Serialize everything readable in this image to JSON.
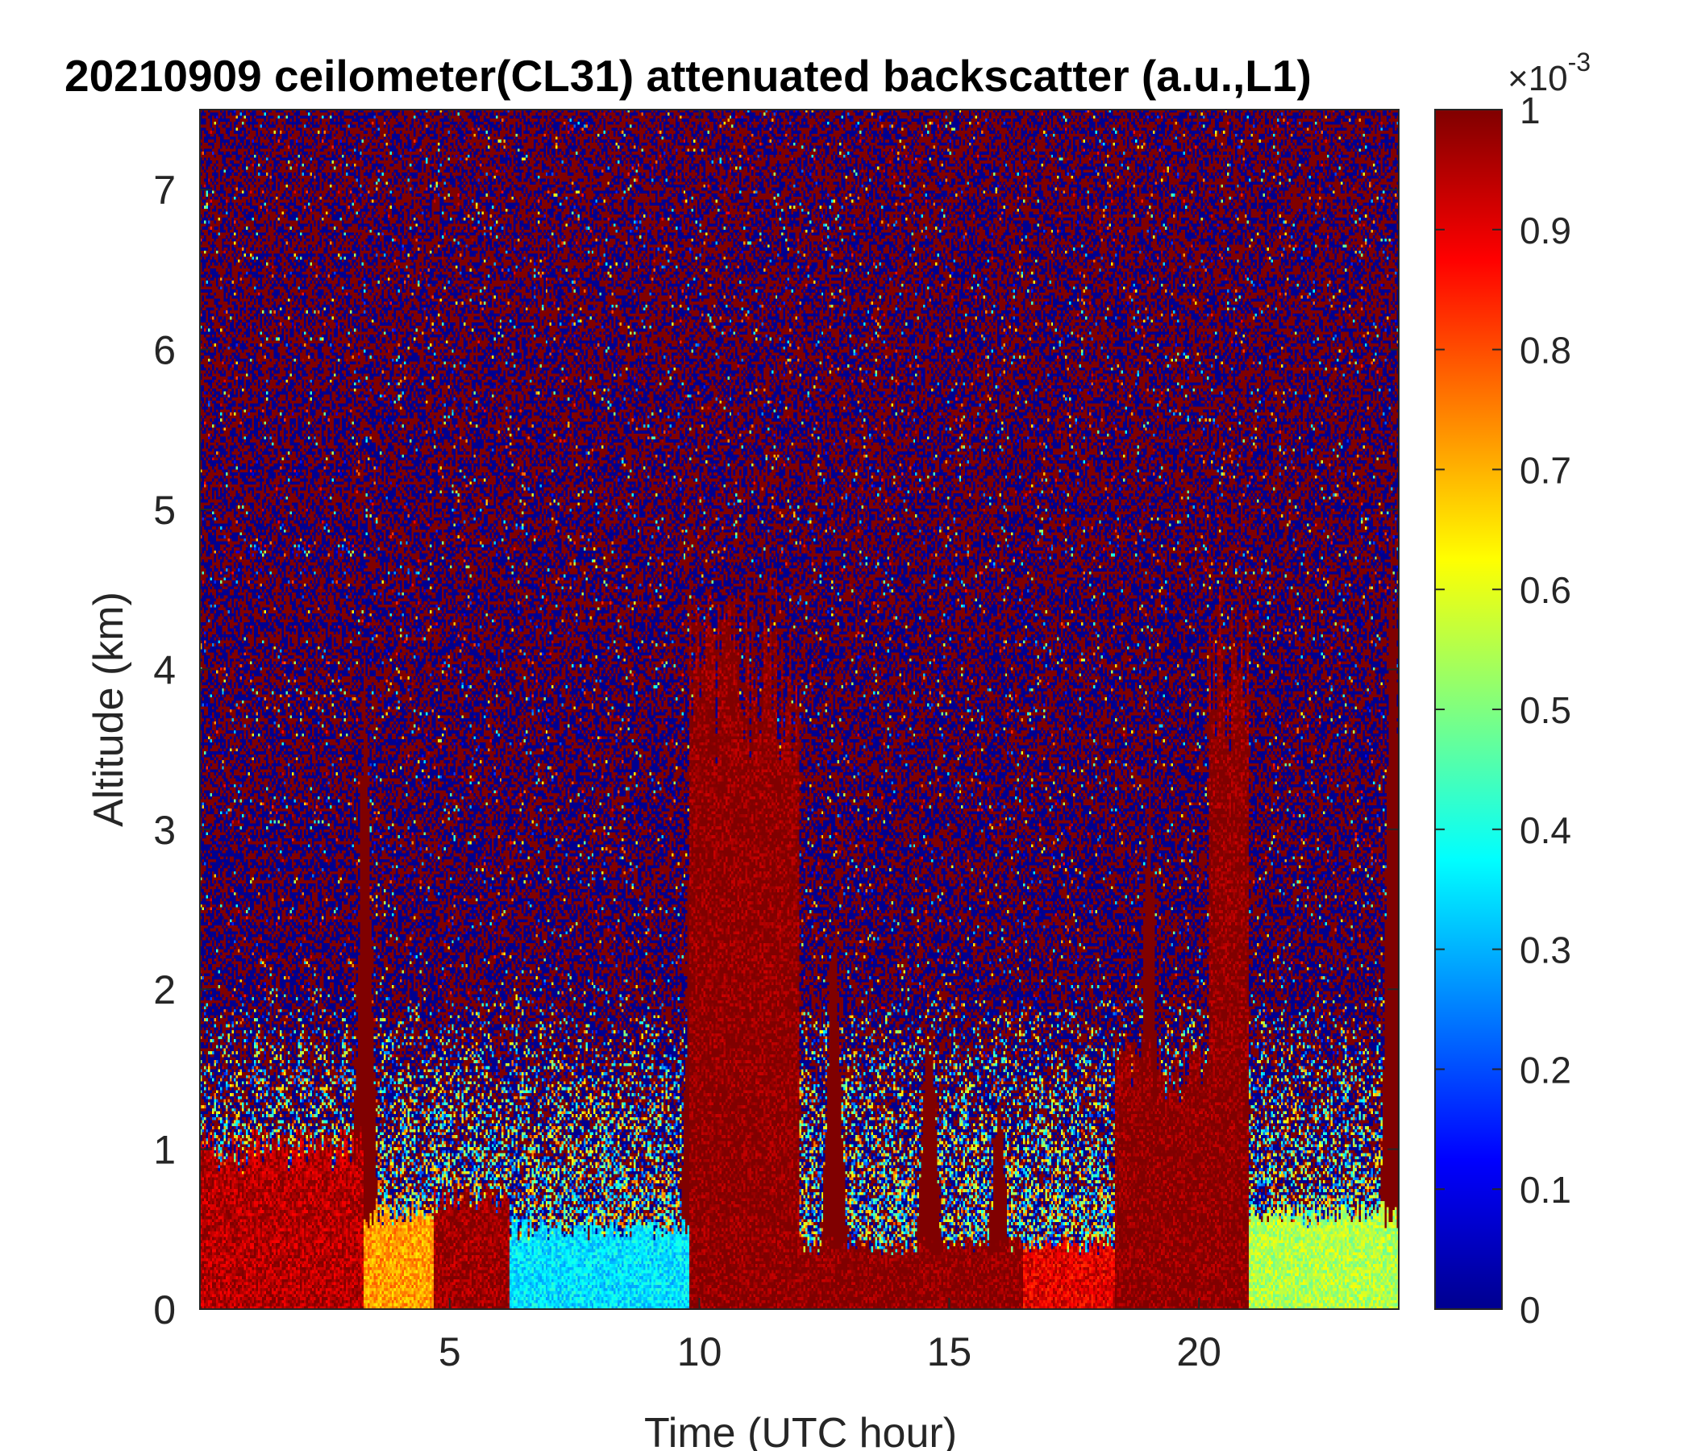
{
  "chart_data": {
    "type": "heatmap",
    "title": "20210909 ceilometer(CL31) attenuated backscatter (a.u.,L1)",
    "xlabel": "Time (UTC hour)",
    "ylabel": "Altitude (km)",
    "xlim": [
      0,
      24
    ],
    "ylim": [
      0,
      7.5
    ],
    "x_ticks": [
      5,
      10,
      15,
      20
    ],
    "y_ticks": [
      0,
      1,
      2,
      3,
      4,
      5,
      6,
      7
    ],
    "colorbar": {
      "colormap": "jet",
      "range": [
        0,
        1
      ],
      "ticks": [
        0,
        0.1,
        0.2,
        0.3,
        0.4,
        0.5,
        0.6,
        0.7,
        0.8,
        0.9,
        1
      ],
      "exponent_label": "×10",
      "exponent": "-3",
      "low_color": "#00008f",
      "high_color": "#800000"
    },
    "surface_layer_segments": [
      {
        "x_start": 0.0,
        "x_end": 3.3,
        "top_km": 1.0,
        "level": 0.95
      },
      {
        "x_start": 3.3,
        "x_end": 4.7,
        "top_km": 0.6,
        "level": 0.72
      },
      {
        "x_start": 4.7,
        "x_end": 6.2,
        "top_km": 0.7,
        "level": 0.98
      },
      {
        "x_start": 6.2,
        "x_end": 9.8,
        "top_km": 0.5,
        "level": 0.35
      },
      {
        "x_start": 9.8,
        "x_end": 12.0,
        "top_km": 4.0,
        "level": 1.0
      },
      {
        "x_start": 12.0,
        "x_end": 16.5,
        "top_km": 0.4,
        "level": 1.0
      },
      {
        "x_start": 16.5,
        "x_end": 18.3,
        "top_km": 0.4,
        "level": 0.9
      },
      {
        "x_start": 18.3,
        "x_end": 20.2,
        "top_km": 1.5,
        "level": 1.0
      },
      {
        "x_start": 20.2,
        "x_end": 21.0,
        "top_km": 4.0,
        "level": 1.0
      },
      {
        "x_start": 21.0,
        "x_end": 24.0,
        "top_km": 0.6,
        "level": 0.55
      }
    ],
    "tall_plumes": [
      {
        "x": 3.3,
        "top_km": 4.6
      },
      {
        "x": 9.9,
        "top_km": 4.6
      },
      {
        "x": 10.5,
        "top_km": 3.8
      },
      {
        "x": 11.0,
        "top_km": 3.7
      },
      {
        "x": 12.7,
        "top_km": 3.1
      },
      {
        "x": 14.6,
        "top_km": 2.3
      },
      {
        "x": 16.0,
        "top_km": 1.6
      },
      {
        "x": 19.0,
        "top_km": 4.2
      },
      {
        "x": 20.6,
        "top_km": 4.0
      },
      {
        "x": 23.9,
        "top_km": 6.0
      }
    ]
  }
}
